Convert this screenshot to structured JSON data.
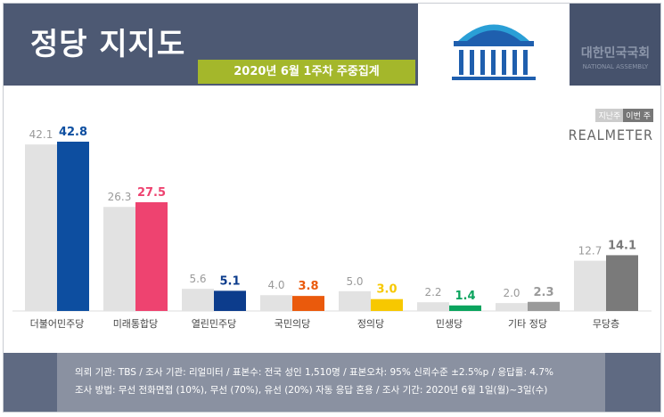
{
  "header": {
    "title": "정당 지지도",
    "period": "2020년 6월 1주차 주중집계",
    "assembly_ko": "대한민국국회",
    "assembly_en": "NATIONAL ASSEMBLY"
  },
  "legend": {
    "prev": "지난주",
    "curr": "이번 주",
    "source": "REALMETER"
  },
  "chart_data": {
    "type": "bar",
    "categories": [
      "더불어민주당",
      "미래통합당",
      "열린민주당",
      "국민의당",
      "정의당",
      "민생당",
      "기타 정당",
      "무당층"
    ],
    "series": [
      {
        "name": "지난주",
        "values": [
          42.1,
          26.3,
          5.6,
          4.0,
          5.0,
          2.2,
          2.0,
          12.7
        ]
      },
      {
        "name": "이번 주",
        "values": [
          42.8,
          27.5,
          5.1,
          3.8,
          3.0,
          1.4,
          2.3,
          14.1
        ]
      }
    ],
    "colors": {
      "prev": "#e2e2e2",
      "curr": [
        "#0d4ea0",
        "#ee4370",
        "#0c3c8c",
        "#ea5a0c",
        "#f7c800",
        "#0ba45e",
        "#9a9a9a",
        "#7a7a7a"
      ],
      "prev_label": "#9a9a9a"
    },
    "ylim": [
      0,
      45
    ],
    "grid": false,
    "legend": "top-right"
  },
  "footer": {
    "line1": "의뢰 기관: TBS / 조사 기관: 리얼미터 / 표본수: 전국 성인 1,510명 / 표본오차: 95% 신뢰수준 ±2.5%p / 응답률: 4.7%",
    "line2": "조사 방법: 무선 전화면접 (10%), 무선 (70%), 유선 (20%) 자동 응답 혼용 / 조사 기간: 2020년 6월 1일(월)~3일(수)"
  }
}
